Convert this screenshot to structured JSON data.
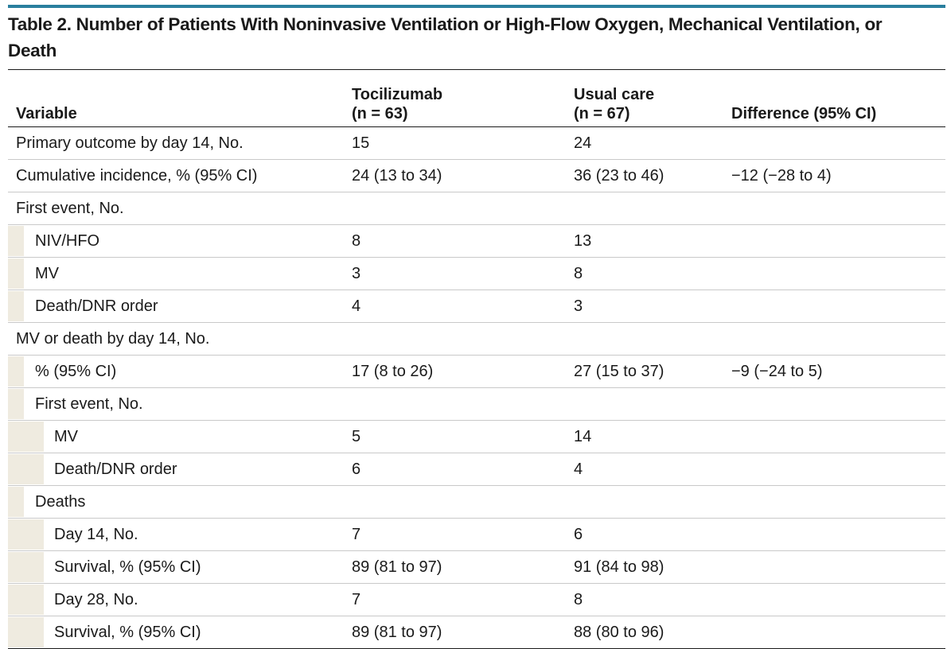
{
  "colors": {
    "accent_rule": "#2a7f9e",
    "indent_shade": "#efebe0",
    "row_divider": "#c9c9c9",
    "text": "#1a1a1a"
  },
  "table": {
    "title": "Table 2. Number of Patients With Noninvasive Ventilation or High-Flow Oxygen, Mechanical Ventilation, or Death",
    "headers": {
      "variable": "Variable",
      "tocilizumab": "Tocilizumab",
      "tocilizumab_n": "(n = 63)",
      "usual_care": "Usual care",
      "usual_care_n": "(n = 67)",
      "difference": "Difference (95% CI)"
    },
    "rows": [
      {
        "level": 0,
        "label": "Primary outcome by day 14, No.",
        "toci": "15",
        "usual": "24",
        "diff": ""
      },
      {
        "level": 0,
        "label": "Cumulative incidence, % (95% CI)",
        "toci": "24 (13 to 34)",
        "usual": "36 (23 to 46)",
        "diff": "−12 (−28 to 4)"
      },
      {
        "level": 0,
        "label": "First event, No.",
        "toci": "",
        "usual": "",
        "diff": ""
      },
      {
        "level": 1,
        "label": "NIV/HFO",
        "toci": "8",
        "usual": "13",
        "diff": ""
      },
      {
        "level": 1,
        "label": "MV",
        "toci": "3",
        "usual": "8",
        "diff": ""
      },
      {
        "level": 1,
        "label": "Death/DNR order",
        "toci": "4",
        "usual": "3",
        "diff": ""
      },
      {
        "level": 0,
        "label": "MV or death by day 14, No.",
        "toci": "",
        "usual": "",
        "diff": ""
      },
      {
        "level": 1,
        "label": "% (95% CI)",
        "toci": "17 (8 to 26)",
        "usual": "27 (15 to 37)",
        "diff": "−9 (−24 to 5)"
      },
      {
        "level": 1,
        "label": "First event, No.",
        "toci": "",
        "usual": "",
        "diff": ""
      },
      {
        "level": 2,
        "label": "MV",
        "toci": "5",
        "usual": "14",
        "diff": ""
      },
      {
        "level": 2,
        "label": "Death/DNR order",
        "toci": "6",
        "usual": "4",
        "diff": ""
      },
      {
        "level": 1,
        "label": "Deaths",
        "toci": "",
        "usual": "",
        "diff": ""
      },
      {
        "level": 2,
        "label": "Day 14, No.",
        "toci": "7",
        "usual": "6",
        "diff": ""
      },
      {
        "level": 2,
        "label": "Survival, % (95% CI)",
        "toci": "89 (81 to 97)",
        "usual": "91 (84 to 98)",
        "diff": ""
      },
      {
        "level": 2,
        "label": "Day 28, No.",
        "toci": "7",
        "usual": "8",
        "diff": ""
      },
      {
        "level": 2,
        "label": "Survival, % (95% CI)",
        "toci": "89 (81 to 97)",
        "usual": "88 (80 to 96)",
        "diff": ""
      }
    ]
  }
}
